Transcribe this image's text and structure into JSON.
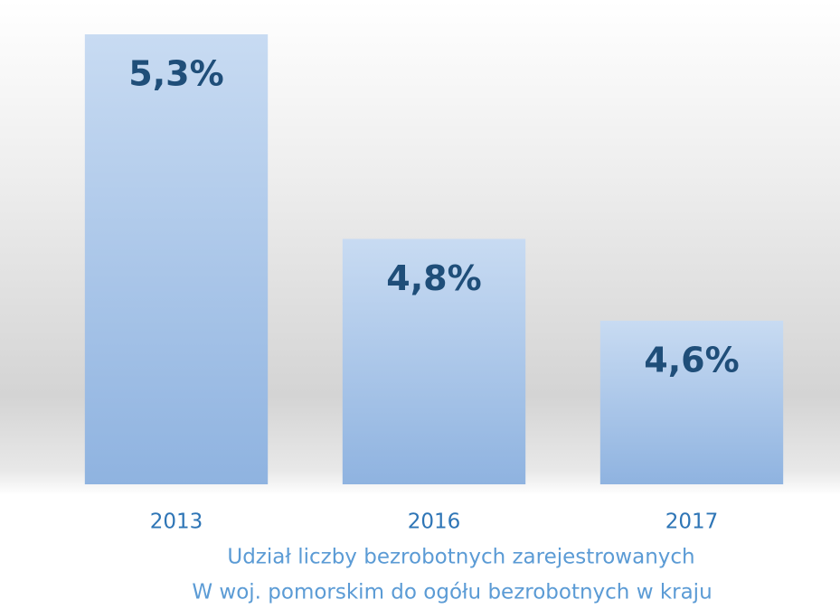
{
  "chart_data": {
    "type": "bar",
    "title": [
      "Udział liczby bezrobotnych zarejestrowanych",
      "W woj. pomorskim do ogółu bezrobotnych w kraju"
    ],
    "categories": [
      "2013",
      "2016",
      "2017"
    ],
    "values": [
      5.3,
      4.8,
      4.6
    ],
    "value_labels": [
      "5,3%",
      "4,8%",
      "4,6%"
    ],
    "ylim": [
      4.2,
      5.3
    ]
  }
}
